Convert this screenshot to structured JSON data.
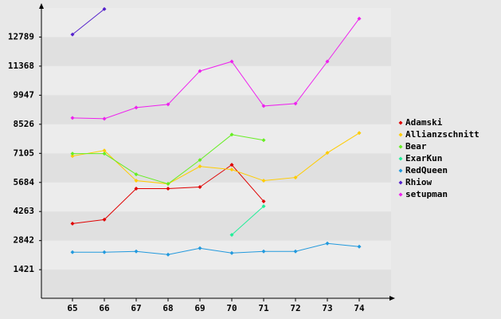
{
  "chart_data": {
    "type": "line",
    "x": [
      65,
      66,
      67,
      68,
      69,
      70,
      71,
      72,
      73,
      74
    ],
    "xlim": [
      64,
      75
    ],
    "xticks": [
      65,
      66,
      67,
      68,
      69,
      70,
      71,
      72,
      73,
      74
    ],
    "ylim": [
      0,
      14210
    ],
    "yticks": [
      1421,
      2842,
      4263,
      5684,
      7105,
      8526,
      9947,
      11368,
      12789
    ],
    "grid": true,
    "legend": "right",
    "series": [
      {
        "name": "Adamski",
        "color": "#e00000",
        "values": [
          3673,
          3867,
          5381,
          5381,
          5459,
          6546,
          4760,
          null,
          null,
          null
        ]
      },
      {
        "name": "Allianzschnitt",
        "color": "#ffcc00",
        "values": [
          6973,
          7245,
          5770,
          5614,
          6468,
          6313,
          5770,
          5925,
          7129,
          8100
        ]
      },
      {
        "name": "Bear",
        "color": "#66ee22",
        "values": [
          7090,
          7090,
          6080,
          5614,
          6779,
          8021,
          7750,
          null,
          null,
          null
        ]
      },
      {
        "name": "ExarKun",
        "color": "#22ee99",
        "values": [
          null,
          null,
          null,
          null,
          null,
          3122,
          4520,
          null,
          null,
          null
        ]
      },
      {
        "name": "RedQueen",
        "color": "#2299dd",
        "values": [
          2275,
          2275,
          2314,
          2159,
          2469,
          2236,
          2314,
          2314,
          2702,
          2547
        ]
      },
      {
        "name": "Rhiow",
        "color": "#5522cc",
        "values": [
          12914,
          14156,
          null,
          null,
          null,
          null,
          null,
          null,
          null,
          null
        ]
      },
      {
        "name": "setupman",
        "color": "#ee22ee",
        "values": [
          8837,
          8798,
          9342,
          9497,
          11128,
          11594,
          9419,
          9536,
          11594,
          13690
        ]
      }
    ]
  }
}
